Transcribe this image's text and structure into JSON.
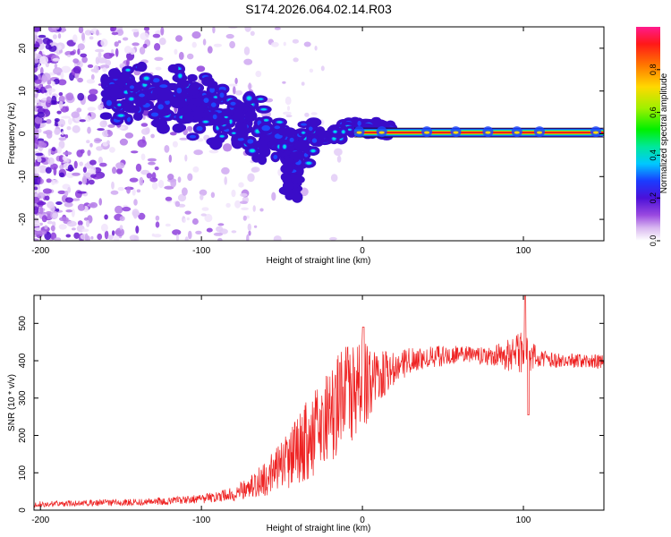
{
  "title": "S174.2026.064.02.14.R03",
  "colors": {
    "snr_line": "#ee2222",
    "axis": "#000000",
    "background": "#ffffff"
  },
  "chart_data": [
    {
      "type": "heatmap",
      "name": "spectrogram",
      "xlabel": "Height of straight line (km)",
      "ylabel": "Frequency (Hz)",
      "xlim": [
        -204,
        150
      ],
      "ylim": [
        -25,
        25
      ],
      "xticks": [
        -200,
        -100,
        0,
        100
      ],
      "yticks": [
        -20,
        -10,
        0,
        10,
        20
      ],
      "colorbar": {
        "label": "Normalized spectral amplitude",
        "range": [
          0,
          1
        ],
        "ticks": [
          0.0,
          0.2,
          0.4,
          0.6,
          0.8
        ],
        "colormap": "rainbow (white-violet-blue-cyan-green-yellow-red-magenta)"
      },
      "ridge_track": {
        "x": [
          -155,
          -140,
          -125,
          -110,
          -95,
          -80,
          -65,
          -50,
          -40,
          -30,
          -20,
          -10,
          0,
          15,
          40,
          60,
          80,
          100,
          150
        ],
        "frequency": [
          8,
          9,
          8,
          7,
          6,
          4,
          1,
          -2,
          -3,
          -1,
          0,
          1,
          1.5,
          0.5,
          0.3,
          0.3,
          0.3,
          0.3,
          0.3
        ]
      }
    },
    {
      "type": "line",
      "name": "snr",
      "xlabel": "Height of straight line (km)",
      "ylabel": "SNR (10 * v/v)",
      "xlim": [
        -204,
        150
      ],
      "ylim": [
        0,
        575
      ],
      "xticks": [
        -200,
        -100,
        0,
        100
      ],
      "yticks": [
        0,
        100,
        200,
        300,
        400,
        500
      ],
      "series": [
        {
          "name": "SNR",
          "x": [
            -204,
            -180,
            -160,
            -140,
            -120,
            -100,
            -90,
            -80,
            -70,
            -60,
            -50,
            -40,
            -30,
            -20,
            -10,
            0,
            10,
            20,
            30,
            40,
            60,
            80,
            100,
            110,
            120,
            130,
            150
          ],
          "values": [
            15,
            18,
            20,
            22,
            25,
            30,
            35,
            45,
            60,
            85,
            120,
            160,
            210,
            260,
            300,
            330,
            355,
            380,
            400,
            410,
            415,
            410,
            420,
            405,
            400,
            400,
            395
          ],
          "noise_amplitude": [
            8,
            8,
            9,
            10,
            10,
            12,
            15,
            20,
            30,
            50,
            70,
            90,
            120,
            130,
            140,
            130,
            70,
            45,
            35,
            30,
            25,
            25,
            60,
            25,
            20,
            20,
            20
          ]
        }
      ]
    }
  ]
}
